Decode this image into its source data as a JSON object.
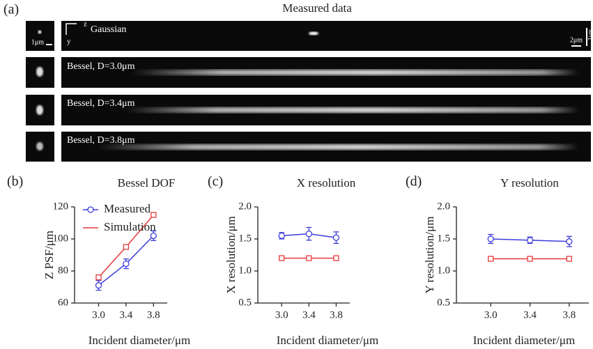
{
  "panel_a": {
    "label": "(a)",
    "title": "Measured data",
    "axis_z": "z",
    "axis_y": "y",
    "scale_small": "1μm",
    "scale_z": "2μm",
    "scale_y": "1μm",
    "rows": [
      "Gaussian",
      "Bessel, D=3.0μm",
      "Bessel, D=3.4μm",
      "Bessel, D=3.8μm"
    ]
  },
  "chart_data": [
    {
      "type": "line",
      "label": "(b)",
      "title": "Bessel DOF",
      "xlabel": "Incident diameter/μm",
      "ylabel": "Z PSF/μm",
      "x": [
        3.0,
        3.4,
        3.8
      ],
      "xlim": [
        2.65,
        4.0
      ],
      "xticks": [
        {
          "value": 3.0,
          "label": "3.0"
        },
        {
          "value": 3.4,
          "label": "3.4"
        },
        {
          "value": 3.8,
          "label": "3.8"
        }
      ],
      "ylim": [
        60,
        120
      ],
      "yticks": [
        60,
        80,
        100,
        120
      ],
      "grid": false,
      "legend": "upper left",
      "series": [
        {
          "name": "Measured",
          "color": "#3b3bdc",
          "marker": "circle",
          "values": [
            71,
            84.5,
            102
          ],
          "errors": [
            3,
            3,
            3
          ]
        },
        {
          "name": "Simulation",
          "color": "#e8383d",
          "marker": "square",
          "values": [
            76,
            95,
            115
          ]
        }
      ]
    },
    {
      "type": "line",
      "label": "(c)",
      "title": "X resolution",
      "xlabel": "Incident diameter/μm",
      "ylabel": "X resolution/μm",
      "x": [
        3.0,
        3.4,
        3.8
      ],
      "xlim": [
        2.65,
        4.0
      ],
      "xticks": [
        {
          "value": 3.0,
          "label": "3.0"
        },
        {
          "value": 3.4,
          "label": "3.4"
        },
        {
          "value": 3.8,
          "label": "3.8"
        }
      ],
      "ylim": [
        0.5,
        2.0
      ],
      "yticks": [
        0.5,
        {
          "value": 1.0,
          "label": "1.0"
        },
        1.5,
        {
          "value": 2.0,
          "label": "2.0"
        }
      ],
      "grid": false,
      "series": [
        {
          "color": "#3b3bdc",
          "marker": "circle",
          "values": [
            1.55,
            1.58,
            1.52
          ],
          "errors": [
            0.05,
            0.1,
            0.09
          ]
        },
        {
          "color": "#e8383d",
          "marker": "square",
          "values": [
            1.2,
            1.2,
            1.2
          ]
        }
      ]
    },
    {
      "type": "line",
      "label": "(d)",
      "title": "Y resolution",
      "xlabel": "Incident diameter/μm",
      "ylabel": "Y resolution/μm",
      "x": [
        3.0,
        3.4,
        3.8
      ],
      "xlim": [
        2.65,
        4.0
      ],
      "xticks": [
        {
          "value": 3.0,
          "label": "3.0"
        },
        {
          "value": 3.4,
          "label": "3.4"
        },
        {
          "value": 3.8,
          "label": "3.8"
        }
      ],
      "ylim": [
        0.5,
        2.0
      ],
      "yticks": [
        0.5,
        {
          "value": 1.0,
          "label": "1.0"
        },
        1.5,
        {
          "value": 2.0,
          "label": "2.0"
        }
      ],
      "grid": false,
      "series": [
        {
          "color": "#3b3bdc",
          "marker": "circle",
          "values": [
            1.5,
            1.48,
            1.46
          ],
          "errors": [
            0.07,
            0.05,
            0.08
          ]
        },
        {
          "color": "#e8383d",
          "marker": "square",
          "values": [
            1.19,
            1.19,
            1.19
          ]
        }
      ]
    }
  ]
}
